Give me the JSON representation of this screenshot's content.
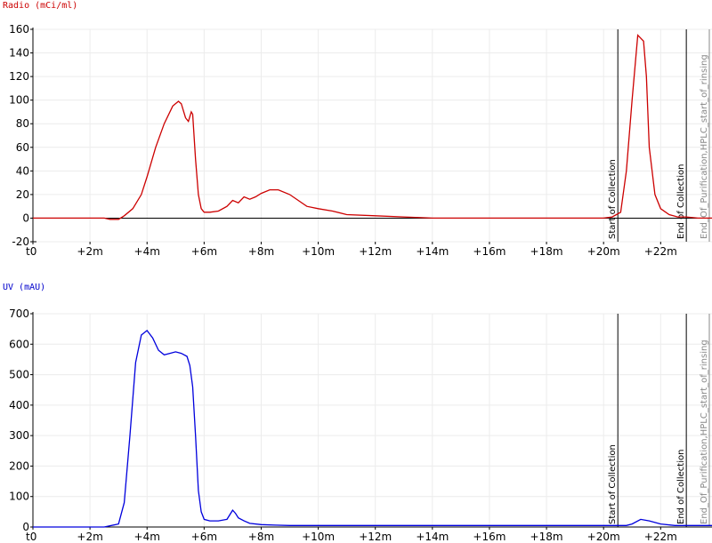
{
  "chart_data": [
    {
      "type": "line",
      "title": "Radio (mCi/ml)",
      "color": "#cc0000",
      "xlim": [
        0,
        23.8
      ],
      "ylim": [
        -20,
        160
      ],
      "yticks": [
        -20,
        0,
        20,
        40,
        60,
        80,
        100,
        120,
        140,
        160
      ],
      "ytick_labels": [
        "-20",
        "0",
        "20",
        "40",
        "60",
        "80",
        "100",
        "120",
        "140",
        "160"
      ],
      "xticks": [
        0,
        2,
        4,
        6,
        8,
        10,
        12,
        14,
        16,
        18,
        20,
        22
      ],
      "xtick_labels": [
        "t0",
        "+2m",
        "+4m",
        "+6m",
        "+8m",
        "+10m",
        "+12m",
        "+14m",
        "+16m",
        "+18m",
        "+20m",
        "+22m"
      ],
      "grid": true,
      "markers": [
        {
          "x": 20.5,
          "label": "Start of Collection",
          "color": "#000000"
        },
        {
          "x": 22.9,
          "label": "End of Collection",
          "color": "#000000"
        },
        {
          "x": 23.8,
          "label": "End_Of_Purification,HPLC_start_of_rinsing",
          "color": "#888888"
        }
      ],
      "series": [
        {
          "x": [
            0,
            2.5,
            2.7,
            3.0,
            3.2,
            3.5,
            3.8,
            4.0,
            4.3,
            4.6,
            4.9,
            5.1,
            5.2,
            5.35,
            5.45,
            5.55,
            5.6,
            5.7,
            5.8,
            5.9,
            6.0,
            6.2,
            6.5,
            6.8,
            7.0,
            7.2,
            7.4,
            7.6,
            7.8,
            8.0,
            8.3,
            8.6,
            9.0,
            9.3,
            9.6,
            10.0,
            10.5,
            11.0,
            12.0,
            13.0,
            14.0,
            16.0,
            18.0,
            20.0,
            20.3,
            20.6,
            20.8,
            21.0,
            21.2,
            21.4,
            21.5,
            21.6,
            21.8,
            22.0,
            22.3,
            22.6,
            22.9,
            23.3,
            23.8
          ],
          "y": [
            0,
            0,
            -1,
            -1,
            2,
            8,
            20,
            35,
            60,
            80,
            95,
            99,
            97,
            85,
            82,
            90,
            88,
            50,
            20,
            8,
            5,
            5,
            6,
            10,
            15,
            13,
            18,
            16,
            18,
            21,
            24,
            24,
            20,
            15,
            10,
            8,
            6,
            3,
            2,
            1,
            0,
            0,
            0,
            0,
            1,
            5,
            40,
            100,
            155,
            150,
            120,
            60,
            20,
            8,
            3,
            1,
            1,
            0,
            0
          ]
        }
      ]
    },
    {
      "type": "line",
      "title": "UV (mAU)",
      "color": "#0000dd",
      "xlim": [
        0,
        23.8
      ],
      "ylim": [
        0,
        700
      ],
      "yticks": [
        0,
        100,
        200,
        300,
        400,
        500,
        600,
        700
      ],
      "ytick_labels": [
        "0",
        "100",
        "200",
        "300",
        "400",
        "500",
        "600",
        "700"
      ],
      "xticks": [
        0,
        2,
        4,
        6,
        8,
        10,
        12,
        14,
        16,
        18,
        20,
        22
      ],
      "xtick_labels": [
        "t0",
        "+2m",
        "+4m",
        "+6m",
        "+8m",
        "+10m",
        "+12m",
        "+14m",
        "+16m",
        "+18m",
        "+20m",
        "+22m"
      ],
      "grid": true,
      "markers": [
        {
          "x": 20.5,
          "label": "Start of Collection",
          "color": "#000000"
        },
        {
          "x": 22.9,
          "label": "End of Collection",
          "color": "#000000"
        },
        {
          "x": 23.8,
          "label": "End_Of_Purification,HPLC_start_of_rinsing",
          "color": "#888888"
        }
      ],
      "series": [
        {
          "x": [
            0,
            2.5,
            3.0,
            3.2,
            3.4,
            3.6,
            3.8,
            4.0,
            4.2,
            4.4,
            4.6,
            4.8,
            5.0,
            5.2,
            5.4,
            5.5,
            5.6,
            5.7,
            5.8,
            5.9,
            6.0,
            6.2,
            6.5,
            6.8,
            7.0,
            7.1,
            7.2,
            7.4,
            7.6,
            8.0,
            8.5,
            9.0,
            10.0,
            12.0,
            14.0,
            16.0,
            18.0,
            20.0,
            20.8,
            21.0,
            21.3,
            21.6,
            22.0,
            22.5,
            23.0,
            23.8
          ],
          "y": [
            0,
            0,
            10,
            80,
            300,
            540,
            630,
            645,
            620,
            580,
            565,
            570,
            575,
            570,
            560,
            530,
            460,
            300,
            120,
            50,
            25,
            20,
            20,
            25,
            55,
            45,
            30,
            20,
            12,
            8,
            6,
            5,
            5,
            5,
            5,
            5,
            5,
            5,
            5,
            10,
            25,
            20,
            10,
            5,
            5,
            5
          ]
        }
      ]
    }
  ]
}
